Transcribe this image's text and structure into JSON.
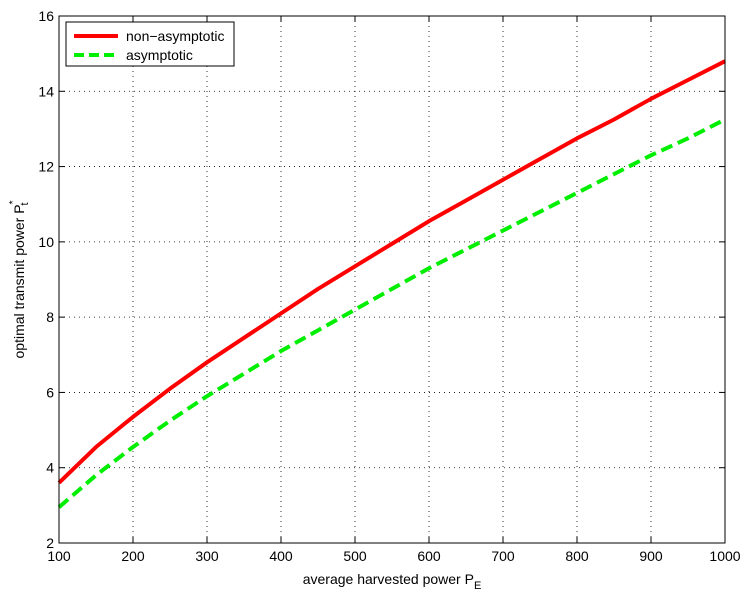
{
  "chart_data": {
    "type": "line",
    "title": "",
    "xlabel": "average harvested power P",
    "xlabel_sub": "E",
    "ylabel": "optimal transmit power P",
    "ylabel_sub": "t",
    "ylabel_sup": "*",
    "xlim": [
      100,
      1000
    ],
    "ylim": [
      2,
      16
    ],
    "xticks": [
      100,
      200,
      300,
      400,
      500,
      600,
      700,
      800,
      900,
      1000
    ],
    "yticks": [
      2,
      4,
      6,
      8,
      10,
      12,
      14,
      16
    ],
    "grid": true,
    "grid_style": "dotted",
    "legend_position": "top-left",
    "x": [
      100,
      150,
      200,
      250,
      300,
      350,
      400,
      450,
      500,
      550,
      600,
      650,
      700,
      750,
      800,
      850,
      900,
      950,
      1000
    ],
    "series": [
      {
        "name": "non−asymptotic",
        "color": "#ff0000",
        "line_style": "solid",
        "values": [
          3.6,
          4.55,
          5.35,
          6.1,
          6.8,
          7.45,
          8.1,
          8.75,
          9.35,
          9.95,
          10.55,
          11.1,
          11.65,
          12.2,
          12.75,
          13.25,
          13.8,
          14.3,
          14.8
        ]
      },
      {
        "name": "asymptotic",
        "color": "#00ee00",
        "line_style": "dashed",
        "values": [
          2.95,
          3.8,
          4.55,
          5.25,
          5.9,
          6.5,
          7.1,
          7.65,
          8.2,
          8.75,
          9.3,
          9.8,
          10.3,
          10.8,
          11.3,
          11.8,
          12.3,
          12.75,
          13.25
        ]
      }
    ]
  }
}
